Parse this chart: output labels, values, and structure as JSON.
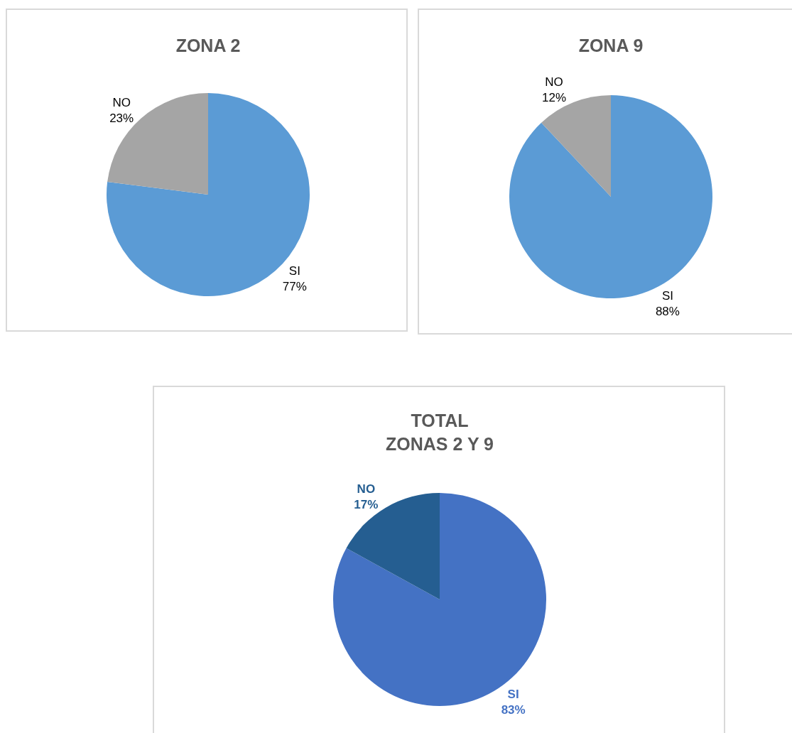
{
  "chart_data": [
    {
      "type": "pie",
      "title": "ZONA 2",
      "categories": [
        "SI",
        "NO"
      ],
      "values": [
        77,
        23
      ],
      "colors": [
        "#5b9bd5",
        "#a5a5a5"
      ],
      "value_labels": [
        "77%",
        "23%"
      ]
    },
    {
      "type": "pie",
      "title": "ZONA 9",
      "categories": [
        "SI",
        "NO"
      ],
      "values": [
        88,
        12
      ],
      "colors": [
        "#5b9bd5",
        "#a5a5a5"
      ],
      "value_labels": [
        "88%",
        "12%"
      ]
    },
    {
      "type": "pie",
      "title": "TOTAL\nZONAS 2 Y 9",
      "categories": [
        "SI",
        "NO"
      ],
      "values": [
        83,
        17
      ],
      "colors": [
        "#4472c4",
        "#255e91"
      ],
      "value_labels": [
        "83%",
        "17%"
      ]
    }
  ]
}
